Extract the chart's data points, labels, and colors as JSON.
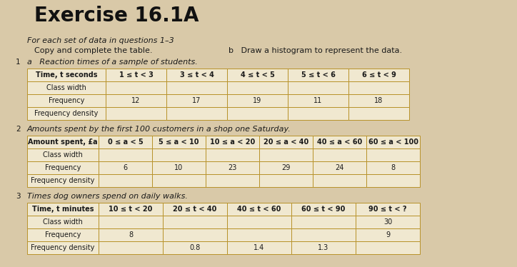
{
  "title": "Exercise 16.1A",
  "instr1": "For each set of data in questions 1–3",
  "instr2a": "Copy and complete the table.",
  "instr2b": "b   Draw a histogram to represent the data.",
  "q1_intro_a": "a   Reaction times of a sample of students.",
  "q1_num": "1",
  "q1_header": [
    "Time, t seconds",
    "1 ≤ t < 3",
    "3 ≤ t < 4",
    "4 ≤ t < 5",
    "5 ≤ t < 6",
    "6 ≤ t < 9"
  ],
  "q1_row1": [
    "Class width",
    "",
    "",
    "",
    "",
    ""
  ],
  "q1_row2": [
    "Frequency",
    "12",
    "17",
    "19",
    "11",
    "18"
  ],
  "q1_row3": [
    "Frequency density",
    "",
    "",
    "",
    "",
    ""
  ],
  "q2_intro": "Amounts spent by the first 100 customers in a shop one Saturday.",
  "q2_num": "2",
  "q2_header": [
    "Amount spent, £a",
    "0 ≤ a < 5",
    "5 ≤ a < 10",
    "10 ≤ a < 20",
    "20 ≤ a < 40",
    "40 ≤ a < 60",
    "60 ≤ a < 100"
  ],
  "q2_row1": [
    "Class width",
    "",
    "",
    "",
    "",
    "",
    ""
  ],
  "q2_row2": [
    "Frequency",
    "6",
    "10",
    "23",
    "29",
    "24",
    "8"
  ],
  "q2_row3": [
    "Frequency density",
    "",
    "",
    "",
    "",
    "",
    ""
  ],
  "q3_intro": "Times dog owners spend on daily walks.",
  "q3_num": "3",
  "q3_header": [
    "Time, t minutes",
    "10 ≤ t < 20",
    "20 ≤ t < 40",
    "40 ≤ t < 60",
    "60 ≤ t < 90",
    "90 ≤ t < ?"
  ],
  "q3_row1": [
    "Class width",
    "",
    "",
    "",
    "",
    "30"
  ],
  "q3_row2": [
    "Frequency",
    "8",
    "",
    "",
    "",
    "9"
  ],
  "q3_row3": [
    "Frequency density",
    "",
    "0.8",
    "1.4",
    "1.3",
    ""
  ],
  "bg_color": "#d9c9a8",
  "page_color": "#e8dcc0",
  "table_border_color": "#b8922a",
  "table_fill_color": "#f0e8d0",
  "text_color": "#1a1a1a",
  "title_color": "#111111",
  "num_color": "#333333"
}
